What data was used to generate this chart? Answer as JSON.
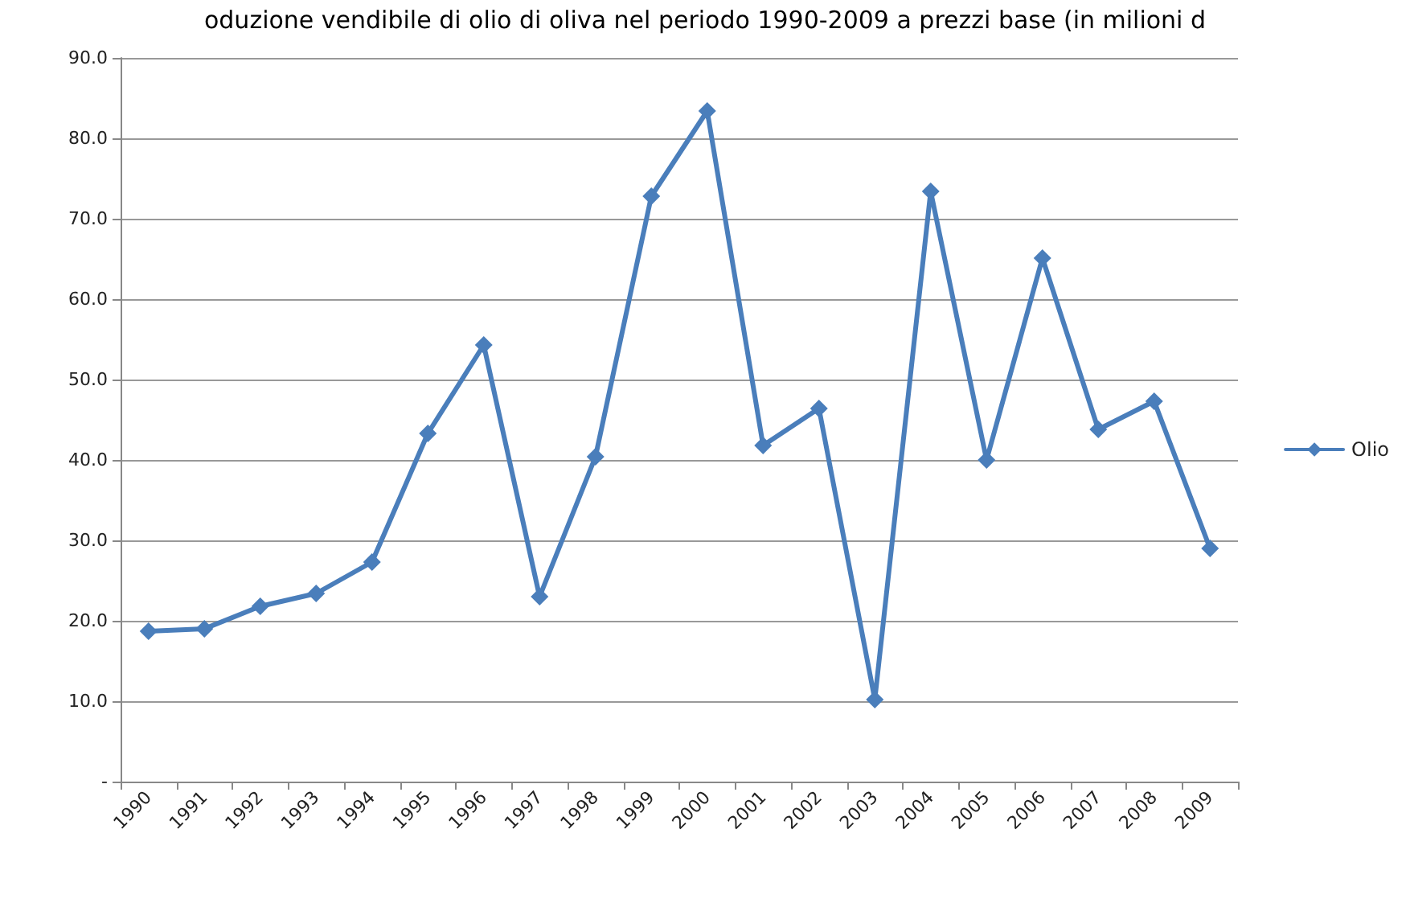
{
  "chart_data": {
    "type": "line",
    "title": "oduzione vendibile di olio di oliva nel periodo 1990-2009 a prezzi base (in milioni d",
    "categories": [
      "1990",
      "1991",
      "1992",
      "1993",
      "1994",
      "1995",
      "1996",
      "1997",
      "1998",
      "1999",
      "2000",
      "2001",
      "2002",
      "2003",
      "2004",
      "2005",
      "2006",
      "2007",
      "2008",
      "2009"
    ],
    "series": [
      {
        "name": "Olio",
        "color": "#4a7ebb",
        "values": [
          18.7,
          19.0,
          21.8,
          23.4,
          27.3,
          43.3,
          54.3,
          23.0,
          40.4,
          72.8,
          83.4,
          41.8,
          46.4,
          10.2,
          73.4,
          40.0,
          65.1,
          43.8,
          47.3,
          29.0
        ]
      }
    ],
    "ylim": [
      0,
      90
    ],
    "yticks": [
      {
        "value": 0,
        "label": "-"
      },
      {
        "value": 10,
        "label": "10.0"
      },
      {
        "value": 20,
        "label": "20.0"
      },
      {
        "value": 30,
        "label": "30.0"
      },
      {
        "value": 40,
        "label": "40.0"
      },
      {
        "value": 50,
        "label": "50.0"
      },
      {
        "value": 60,
        "label": "60.0"
      },
      {
        "value": 70,
        "label": "70.0"
      },
      {
        "value": 80,
        "label": "80.0"
      },
      {
        "value": 90,
        "label": "90.0"
      }
    ],
    "grid": "y",
    "legend": "right",
    "marker": "diamond",
    "line_style": "solid"
  }
}
